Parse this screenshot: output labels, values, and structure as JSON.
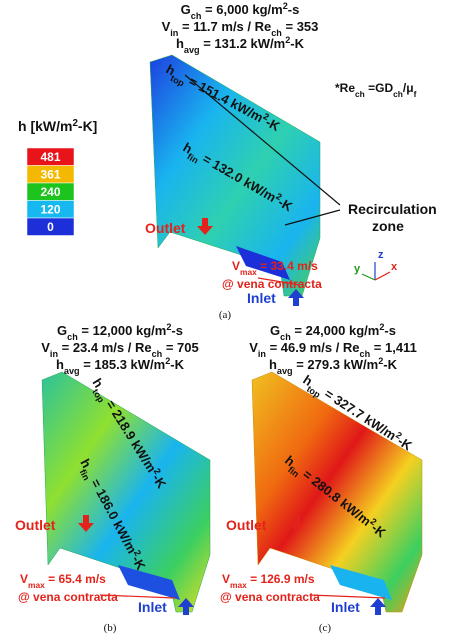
{
  "legend": {
    "title": [
      "h [kW/m",
      "2",
      "-K]"
    ],
    "levels": [
      {
        "label": "481",
        "color": "#e8141a"
      },
      {
        "label": "361",
        "color": "#f5b800"
      },
      {
        "label": "240",
        "color": "#1ec41e"
      },
      {
        "label": "120",
        "color": "#17b8f0"
      },
      {
        "label": "0",
        "color": "#1d2fd8"
      }
    ]
  },
  "note": [
    "*Re",
    "ch",
    " =GD",
    "ch",
    "/μ",
    "f"
  ],
  "recirculation": [
    "Recirculation",
    "zone"
  ],
  "axes": {
    "x": "x",
    "y": "y",
    "z": "z"
  },
  "panels": [
    {
      "caption": "(a)",
      "conditions": [
        [
          "G",
          "ch",
          " = 6,000 kg/m",
          "2",
          "-s"
        ],
        [
          "V",
          "in",
          " = 11.7 m/s / Re",
          "ch",
          " = 353"
        ],
        [
          "h",
          "avg",
          " = 131.2 kW/m",
          "2",
          "-K"
        ]
      ],
      "h_top": [
        "h",
        "top",
        " = 151.4 kW/m",
        "2",
        "-K"
      ],
      "h_fin": [
        "h",
        "fin",
        " = 132.0 kW/m",
        "2",
        "-K"
      ],
      "outlet": "Outlet",
      "inlet": "Inlet",
      "vmax": [
        "V",
        "max",
        " = 33.4 m/s"
      ],
      "vena": "@ vena contracta"
    },
    {
      "caption": "(b)",
      "conditions": [
        [
          "G",
          "ch",
          " = 12,000 kg/m",
          "2",
          "-s"
        ],
        [
          "V",
          "in",
          " = 23.4 m/s / Re",
          "ch",
          " = 705"
        ],
        [
          "h",
          "avg",
          " = 185.3 kW/m",
          "2",
          "-K"
        ]
      ],
      "h_top": [
        "h",
        "top",
        " = 218.9 kW/m",
        "2",
        "-K"
      ],
      "h_fin": [
        "h",
        "fin",
        " = 186.0 kW/m",
        "2",
        "-K"
      ],
      "outlet": "Outlet",
      "inlet": "Inlet",
      "vmax": [
        "V",
        "max",
        " = 65.4 m/s"
      ],
      "vena": "@ vena contracta"
    },
    {
      "caption": "(c)",
      "conditions": [
        [
          "G",
          "ch",
          " = 24,000 kg/m",
          "2",
          "-s"
        ],
        [
          "V",
          "in",
          " = 46.9 m/s / Re",
          "ch",
          " = 1,411"
        ],
        [
          "h",
          "avg",
          " = 279.3 kW/m",
          "2",
          "-K"
        ]
      ],
      "h_top": [
        "h",
        "top",
        " = 327.7 kW/m",
        "2",
        "-K"
      ],
      "h_fin": [
        "h",
        "fin",
        " = 280.8 kW/m",
        "2",
        "-K"
      ],
      "outlet": "Outlet",
      "inlet": "Inlet",
      "vmax": [
        "V",
        "max",
        " = 126.9 m/s"
      ],
      "vena": "@ vena contracta"
    }
  ]
}
